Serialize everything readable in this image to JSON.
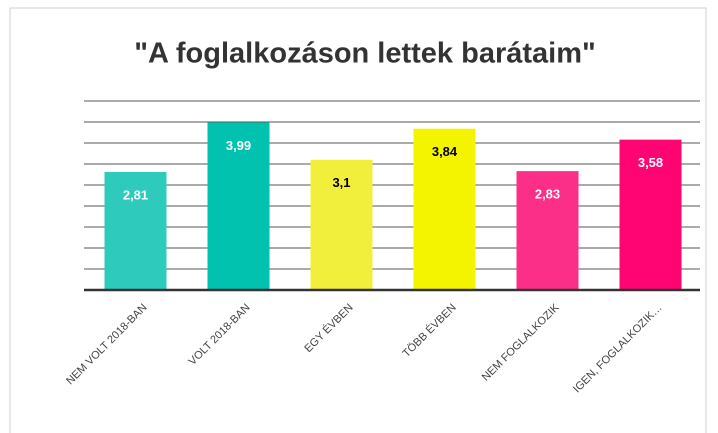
{
  "chart_data": {
    "type": "bar",
    "title": "\"A foglalkozáson lettek barátaim\"",
    "categories": [
      "NEM VOLT 2018-BAN",
      "VOLT 2018-BAN",
      "EGY ÉVBEN",
      "TÖBB ÉVBEN",
      "NEM FOGLALKOZIK",
      "IGEN, FOGLALKOZIK…"
    ],
    "values": [
      2.81,
      3.99,
      3.1,
      3.84,
      2.83,
      3.58
    ],
    "value_labels": [
      "2,81",
      "3,99",
      "3,1",
      "3,84",
      "2,83",
      "3,58"
    ],
    "colors": [
      "#2ecbbd",
      "#00c2ae",
      "#f2ee3c",
      "#f4f400",
      "#fb2f87",
      "#ff0574"
    ],
    "label_colors": [
      "#ffffff",
      "#ffffff",
      "#000000",
      "#000000",
      "#ffffff",
      "#ffffff"
    ],
    "ylim": [
      0,
      4.5
    ],
    "yticks": [
      0,
      0.5,
      1,
      1.5,
      2,
      2.5,
      3,
      3.5,
      4,
      4.5
    ],
    "grid": true
  }
}
